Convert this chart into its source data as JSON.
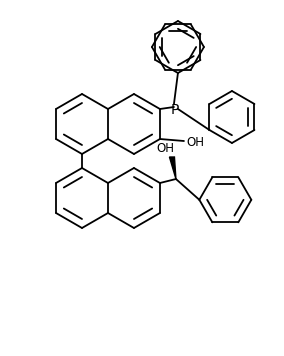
{
  "background": "#ffffff",
  "line_color": "#000000",
  "lw": 1.3,
  "figsize": [
    2.84,
    3.56
  ],
  "dpi": 100,
  "P_label": "P",
  "OH_label": "OH"
}
